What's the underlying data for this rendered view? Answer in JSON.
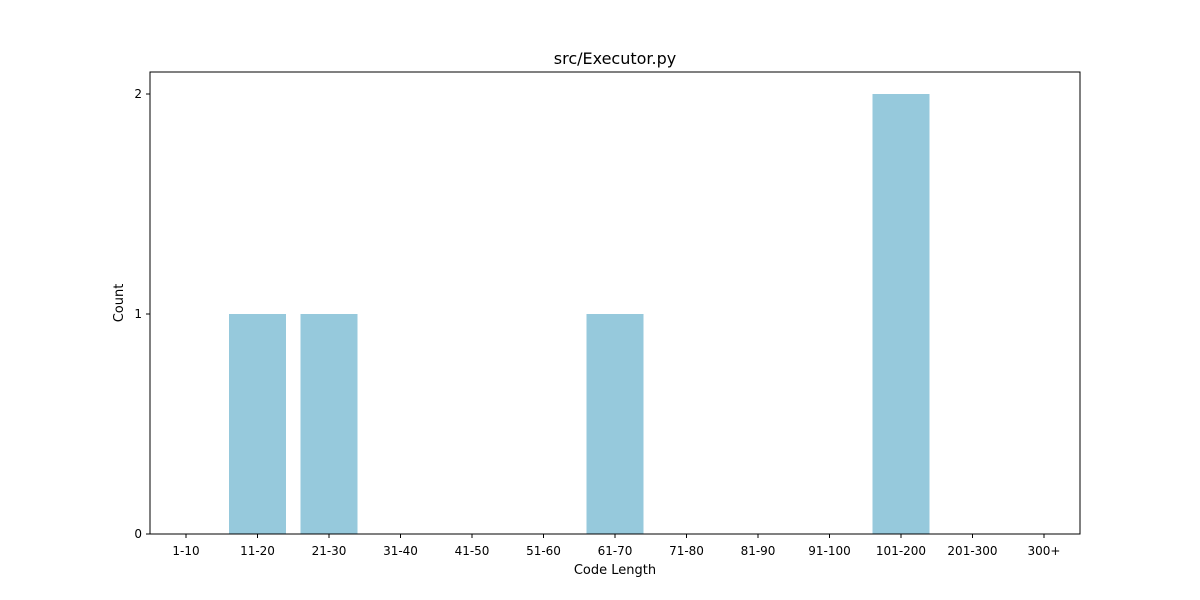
{
  "chart_data": {
    "type": "bar",
    "title": "src/Executor.py",
    "xlabel": "Code Length",
    "ylabel": "Count",
    "categories": [
      "1-10",
      "11-20",
      "21-30",
      "31-40",
      "41-50",
      "51-60",
      "61-70",
      "71-80",
      "81-90",
      "91-100",
      "101-200",
      "201-300",
      "300+"
    ],
    "values": [
      0,
      1,
      1,
      0,
      0,
      0,
      1,
      0,
      0,
      0,
      2,
      0,
      0
    ],
    "ylim": [
      0,
      2.1
    ],
    "yticks": [
      "0",
      "1",
      "2"
    ],
    "grid": false,
    "bar_color": "#96c9dc"
  }
}
